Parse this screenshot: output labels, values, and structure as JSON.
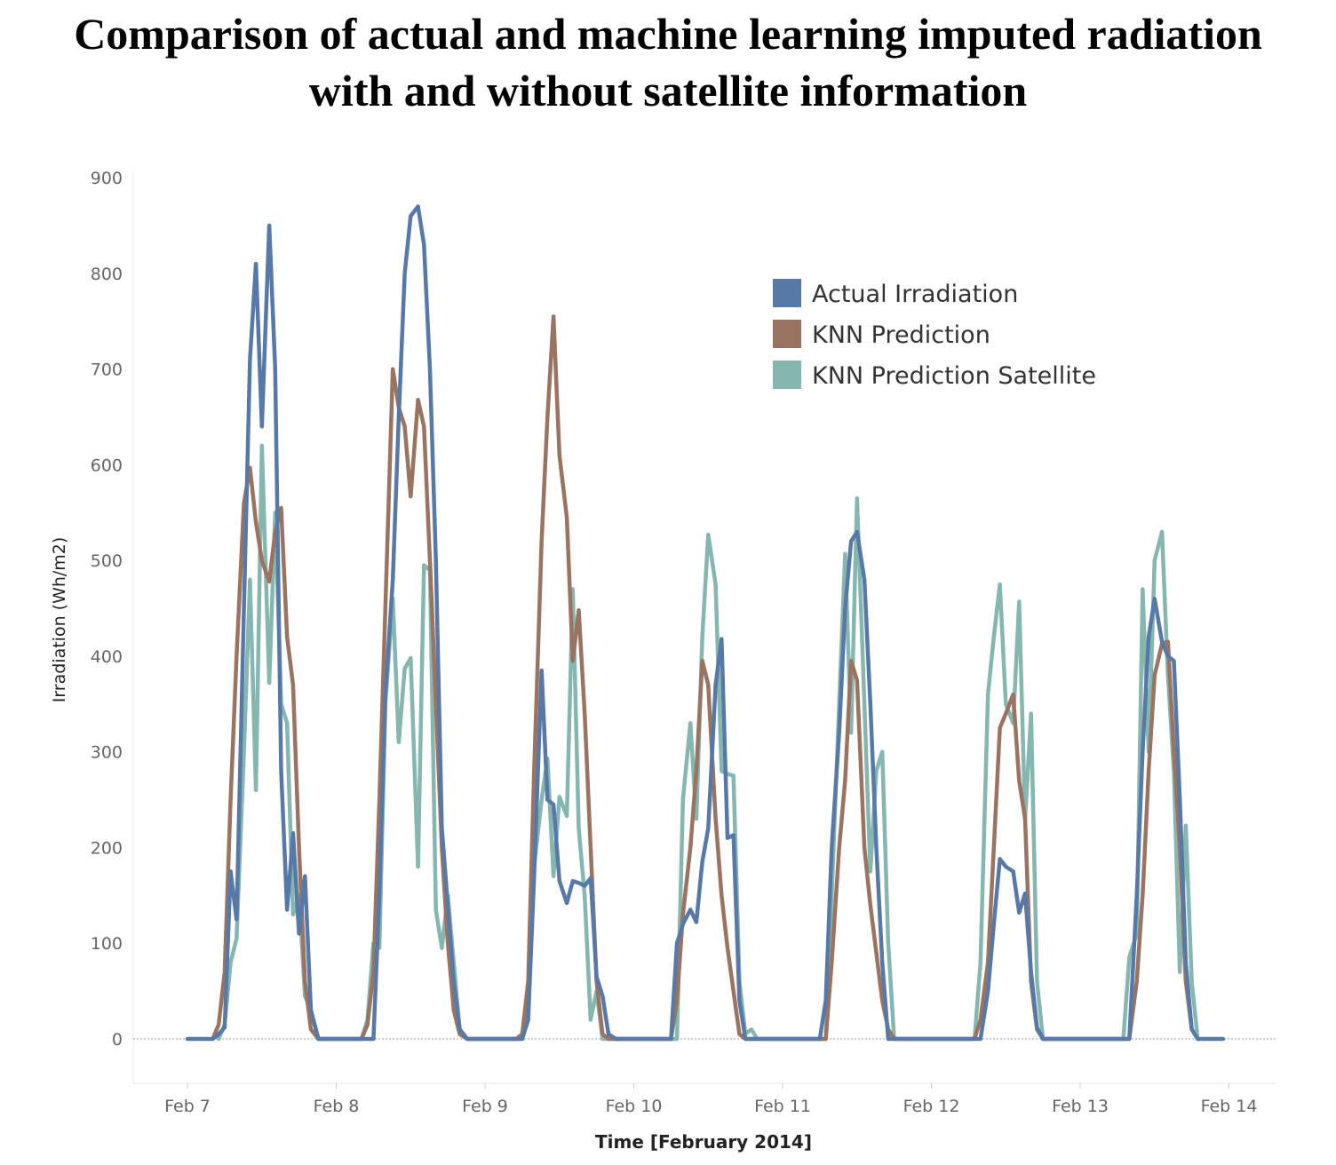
{
  "title_line1": "Comparison of actual and machine learning imputed radiation",
  "title_line2": "with and without satellite information",
  "chart_data": {
    "type": "line",
    "title": "Comparison of actual and machine learning imputed radiation with and without satellite information",
    "xlabel": "Time [February 2014]",
    "ylabel": "Irradiation (Wh/m2)",
    "ylim": [
      -90,
      900
    ],
    "xlim": [
      6.85,
      14.33
    ],
    "yticks": [
      0,
      100,
      200,
      300,
      400,
      500,
      600,
      700,
      800,
      900
    ],
    "xticks": [
      {
        "pos": 7,
        "label": "Feb 7"
      },
      {
        "pos": 8,
        "label": "Feb 8"
      },
      {
        "pos": 9,
        "label": "Feb 9"
      },
      {
        "pos": 10,
        "label": "Feb 10"
      },
      {
        "pos": 11,
        "label": "Feb 11"
      },
      {
        "pos": 12,
        "label": "Feb 12"
      },
      {
        "pos": 13,
        "label": "Feb 13"
      },
      {
        "pos": 14,
        "label": "Feb 14"
      }
    ],
    "legend_position": "top-right",
    "series": [
      {
        "name": "Actual Irradiation",
        "color": "#5779A8",
        "points": [
          [
            7.0,
            0
          ],
          [
            7.17,
            0
          ],
          [
            7.21,
            5
          ],
          [
            7.25,
            12
          ],
          [
            7.29,
            175
          ],
          [
            7.33,
            125
          ],
          [
            7.38,
            450
          ],
          [
            7.42,
            710
          ],
          [
            7.46,
            810
          ],
          [
            7.5,
            640
          ],
          [
            7.55,
            850
          ],
          [
            7.59,
            700
          ],
          [
            7.63,
            280
          ],
          [
            7.67,
            135
          ],
          [
            7.71,
            215
          ],
          [
            7.75,
            110
          ],
          [
            7.79,
            170
          ],
          [
            7.83,
            30
          ],
          [
            7.88,
            0
          ],
          [
            8.25,
            0
          ],
          [
            8.29,
            150
          ],
          [
            8.33,
            360
          ],
          [
            8.38,
            480
          ],
          [
            8.42,
            650
          ],
          [
            8.46,
            800
          ],
          [
            8.5,
            860
          ],
          [
            8.55,
            870
          ],
          [
            8.59,
            830
          ],
          [
            8.63,
            700
          ],
          [
            8.67,
            500
          ],
          [
            8.71,
            220
          ],
          [
            8.75,
            140
          ],
          [
            8.79,
            60
          ],
          [
            8.83,
            10
          ],
          [
            8.88,
            0
          ],
          [
            9.25,
            0
          ],
          [
            9.29,
            20
          ],
          [
            9.33,
            170
          ],
          [
            9.38,
            385
          ],
          [
            9.42,
            250
          ],
          [
            9.46,
            245
          ],
          [
            9.5,
            165
          ],
          [
            9.55,
            142
          ],
          [
            9.59,
            165
          ],
          [
            9.63,
            163
          ],
          [
            9.67,
            160
          ],
          [
            9.71,
            168
          ],
          [
            9.75,
            65
          ],
          [
            9.79,
            45
          ],
          [
            9.83,
            5
          ],
          [
            9.88,
            0
          ],
          [
            10.25,
            0
          ],
          [
            10.29,
            100
          ],
          [
            10.33,
            120
          ],
          [
            10.38,
            135
          ],
          [
            10.42,
            122
          ],
          [
            10.46,
            185
          ],
          [
            10.5,
            220
          ],
          [
            10.55,
            370
          ],
          [
            10.59,
            418
          ],
          [
            10.63,
            210
          ],
          [
            10.67,
            213
          ],
          [
            10.71,
            40
          ],
          [
            10.75,
            0
          ],
          [
            11.25,
            0
          ],
          [
            11.29,
            40
          ],
          [
            11.33,
            200
          ],
          [
            11.38,
            320
          ],
          [
            11.42,
            450
          ],
          [
            11.46,
            520
          ],
          [
            11.5,
            530
          ],
          [
            11.55,
            480
          ],
          [
            11.59,
            350
          ],
          [
            11.63,
            200
          ],
          [
            11.67,
            80
          ],
          [
            11.71,
            0
          ],
          [
            12.33,
            0
          ],
          [
            12.38,
            50
          ],
          [
            12.42,
            120
          ],
          [
            12.46,
            188
          ],
          [
            12.5,
            180
          ],
          [
            12.55,
            175
          ],
          [
            12.59,
            132
          ],
          [
            12.63,
            152
          ],
          [
            12.67,
            70
          ],
          [
            12.71,
            12
          ],
          [
            12.75,
            0
          ],
          [
            13.33,
            0
          ],
          [
            13.38,
            150
          ],
          [
            13.42,
            300
          ],
          [
            13.46,
            420
          ],
          [
            13.5,
            460
          ],
          [
            13.55,
            415
          ],
          [
            13.59,
            400
          ],
          [
            13.63,
            395
          ],
          [
            13.67,
            250
          ],
          [
            13.71,
            80
          ],
          [
            13.75,
            10
          ],
          [
            13.79,
            0
          ],
          [
            13.96,
            0
          ]
        ]
      },
      {
        "name": "KNN Prediction",
        "color": "#9B7461",
        "points": [
          [
            7.17,
            0
          ],
          [
            7.21,
            15
          ],
          [
            7.25,
            70
          ],
          [
            7.29,
            250
          ],
          [
            7.33,
            400
          ],
          [
            7.38,
            560
          ],
          [
            7.42,
            597
          ],
          [
            7.46,
            540
          ],
          [
            7.5,
            500
          ],
          [
            7.55,
            478
          ],
          [
            7.59,
            530
          ],
          [
            7.63,
            555
          ],
          [
            7.67,
            420
          ],
          [
            7.71,
            370
          ],
          [
            7.75,
            200
          ],
          [
            7.79,
            60
          ],
          [
            7.83,
            10
          ],
          [
            7.88,
            0
          ],
          [
            8.17,
            0
          ],
          [
            8.21,
            15
          ],
          [
            8.25,
            70
          ],
          [
            8.29,
            250
          ],
          [
            8.33,
            450
          ],
          [
            8.38,
            700
          ],
          [
            8.42,
            660
          ],
          [
            8.46,
            640
          ],
          [
            8.5,
            567
          ],
          [
            8.55,
            668
          ],
          [
            8.59,
            640
          ],
          [
            8.63,
            500
          ],
          [
            8.67,
            350
          ],
          [
            8.71,
            200
          ],
          [
            8.75,
            100
          ],
          [
            8.79,
            30
          ],
          [
            8.83,
            5
          ],
          [
            8.88,
            0
          ],
          [
            9.21,
            0
          ],
          [
            9.25,
            5
          ],
          [
            9.29,
            60
          ],
          [
            9.33,
            280
          ],
          [
            9.38,
            520
          ],
          [
            9.42,
            650
          ],
          [
            9.46,
            755
          ],
          [
            9.5,
            610
          ],
          [
            9.55,
            545
          ],
          [
            9.59,
            395
          ],
          [
            9.63,
            448
          ],
          [
            9.67,
            340
          ],
          [
            9.71,
            200
          ],
          [
            9.75,
            60
          ],
          [
            9.79,
            5
          ],
          [
            9.83,
            0
          ],
          [
            10.25,
            0
          ],
          [
            10.29,
            40
          ],
          [
            10.33,
            130
          ],
          [
            10.38,
            200
          ],
          [
            10.42,
            280
          ],
          [
            10.46,
            395
          ],
          [
            10.5,
            370
          ],
          [
            10.55,
            230
          ],
          [
            10.59,
            150
          ],
          [
            10.63,
            95
          ],
          [
            10.67,
            50
          ],
          [
            10.71,
            5
          ],
          [
            10.75,
            0
          ],
          [
            11.29,
            0
          ],
          [
            11.33,
            80
          ],
          [
            11.38,
            200
          ],
          [
            11.42,
            270
          ],
          [
            11.46,
            395
          ],
          [
            11.5,
            375
          ],
          [
            11.55,
            200
          ],
          [
            11.59,
            140
          ],
          [
            11.63,
            90
          ],
          [
            11.67,
            40
          ],
          [
            11.71,
            10
          ],
          [
            11.75,
            0
          ],
          [
            12.29,
            0
          ],
          [
            12.33,
            20
          ],
          [
            12.38,
            80
          ],
          [
            12.42,
            200
          ],
          [
            12.46,
            325
          ],
          [
            12.5,
            340
          ],
          [
            12.55,
            360
          ],
          [
            12.59,
            270
          ],
          [
            12.63,
            230
          ],
          [
            12.67,
            60
          ],
          [
            12.71,
            10
          ],
          [
            12.75,
            0
          ],
          [
            13.33,
            0
          ],
          [
            13.38,
            60
          ],
          [
            13.42,
            150
          ],
          [
            13.46,
            280
          ],
          [
            13.5,
            380
          ],
          [
            13.55,
            413
          ],
          [
            13.59,
            415
          ],
          [
            13.63,
            300
          ],
          [
            13.67,
            200
          ],
          [
            13.71,
            60
          ],
          [
            13.75,
            10
          ],
          [
            13.79,
            0
          ]
        ]
      },
      {
        "name": "KNN Prediction Satellite",
        "color": "#86B6B0",
        "points": [
          [
            7.21,
            0
          ],
          [
            7.25,
            15
          ],
          [
            7.29,
            80
          ],
          [
            7.33,
            105
          ],
          [
            7.38,
            300
          ],
          [
            7.42,
            480
          ],
          [
            7.46,
            260
          ],
          [
            7.5,
            620
          ],
          [
            7.55,
            372
          ],
          [
            7.59,
            550
          ],
          [
            7.63,
            350
          ],
          [
            7.67,
            330
          ],
          [
            7.71,
            130
          ],
          [
            7.75,
            150
          ],
          [
            7.79,
            45
          ],
          [
            7.83,
            30
          ],
          [
            7.88,
            0
          ],
          [
            8.17,
            0
          ],
          [
            8.21,
            20
          ],
          [
            8.25,
            100
          ],
          [
            8.29,
            95
          ],
          [
            8.33,
            350
          ],
          [
            8.38,
            460
          ],
          [
            8.42,
            310
          ],
          [
            8.46,
            387
          ],
          [
            8.5,
            398
          ],
          [
            8.55,
            180
          ],
          [
            8.59,
            495
          ],
          [
            8.63,
            490
          ],
          [
            8.67,
            135
          ],
          [
            8.71,
            95
          ],
          [
            8.75,
            150
          ],
          [
            8.79,
            80
          ],
          [
            8.83,
            10
          ],
          [
            8.88,
            0
          ],
          [
            9.25,
            0
          ],
          [
            9.29,
            30
          ],
          [
            9.33,
            180
          ],
          [
            9.38,
            250
          ],
          [
            9.42,
            293
          ],
          [
            9.46,
            170
          ],
          [
            9.5,
            253
          ],
          [
            9.55,
            233
          ],
          [
            9.59,
            470
          ],
          [
            9.63,
            220
          ],
          [
            9.67,
            150
          ],
          [
            9.71,
            20
          ],
          [
            9.75,
            50
          ],
          [
            9.79,
            0
          ],
          [
            10.29,
            0
          ],
          [
            10.33,
            250
          ],
          [
            10.38,
            330
          ],
          [
            10.42,
            230
          ],
          [
            10.46,
            420
          ],
          [
            10.5,
            527
          ],
          [
            10.55,
            475
          ],
          [
            10.59,
            280
          ],
          [
            10.63,
            277
          ],
          [
            10.67,
            275
          ],
          [
            10.71,
            60
          ],
          [
            10.75,
            5
          ],
          [
            10.79,
            10
          ],
          [
            10.83,
            0
          ],
          [
            11.29,
            0
          ],
          [
            11.33,
            150
          ],
          [
            11.38,
            350
          ],
          [
            11.42,
            507
          ],
          [
            11.46,
            320
          ],
          [
            11.5,
            565
          ],
          [
            11.55,
            350
          ],
          [
            11.59,
            175
          ],
          [
            11.63,
            280
          ],
          [
            11.67,
            300
          ],
          [
            11.71,
            100
          ],
          [
            11.75,
            0
          ],
          [
            12.29,
            0
          ],
          [
            12.33,
            80
          ],
          [
            12.38,
            360
          ],
          [
            12.42,
            420
          ],
          [
            12.46,
            475
          ],
          [
            12.5,
            350
          ],
          [
            12.55,
            330
          ],
          [
            12.59,
            457
          ],
          [
            12.63,
            230
          ],
          [
            12.67,
            340
          ],
          [
            12.71,
            60
          ],
          [
            12.75,
            0
          ],
          [
            13.29,
            0
          ],
          [
            13.33,
            85
          ],
          [
            13.38,
            110
          ],
          [
            13.42,
            470
          ],
          [
            13.46,
            300
          ],
          [
            13.5,
            500
          ],
          [
            13.55,
            530
          ],
          [
            13.59,
            380
          ],
          [
            13.63,
            280
          ],
          [
            13.67,
            70
          ],
          [
            13.71,
            223
          ],
          [
            13.75,
            60
          ],
          [
            13.79,
            0
          ]
        ]
      }
    ]
  }
}
